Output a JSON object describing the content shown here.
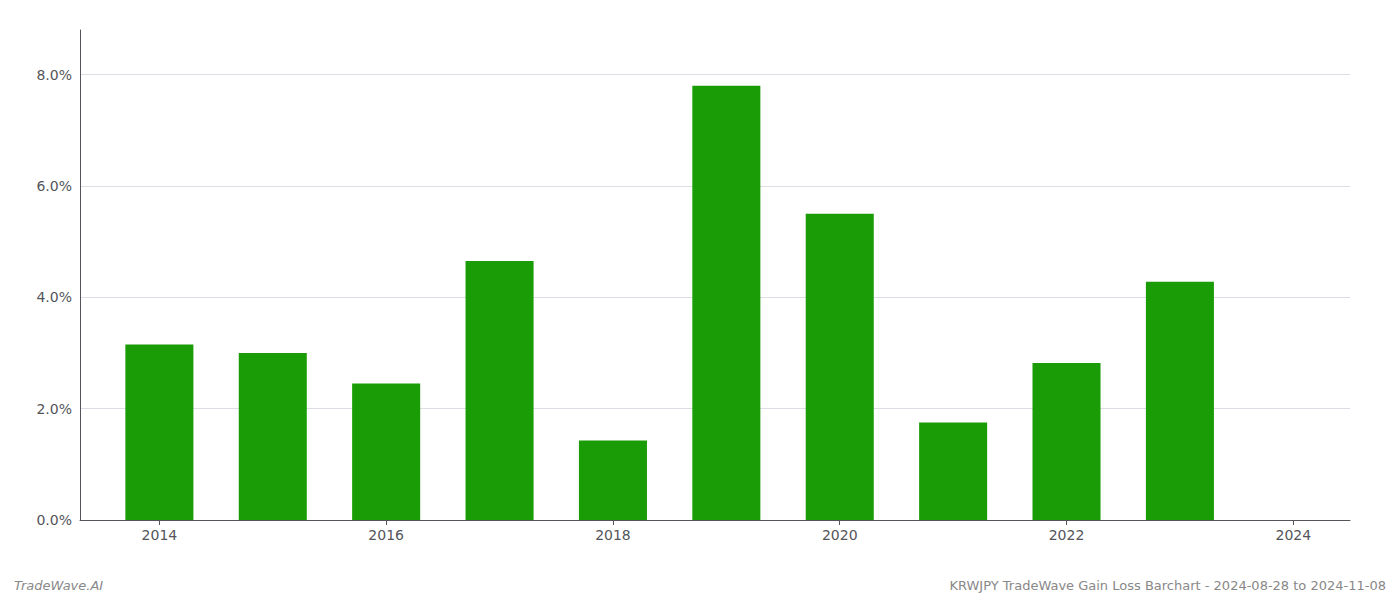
{
  "chart_data": {
    "type": "bar",
    "annotations": [
      "TradeWave.AI",
      "KRWJPY TradeWave Gain Loss Barchart - 2024-08-28 to 2024-11-08"
    ],
    "x": [
      2014,
      2015,
      2016,
      2017,
      2018,
      2019,
      2020,
      2021,
      2022,
      2023
    ],
    "values": [
      0.0315,
      0.03,
      0.0245,
      0.0465,
      0.0143,
      0.078,
      0.055,
      0.0175,
      0.0282,
      0.0428
    ],
    "color": "#1a9c06",
    "xlim": [
      2013.3,
      2024.5
    ],
    "xticks": [
      2014,
      2016,
      2018,
      2020,
      2022,
      2024
    ],
    "ylim": [
      0,
      0.088
    ],
    "yticks": [
      {
        "value": 0,
        "label": "0.0%"
      },
      {
        "value": 0.02,
        "label": "2.0%"
      },
      {
        "value": 0.04,
        "label": "4.0%"
      },
      {
        "value": 0.06,
        "label": "6.0%"
      },
      {
        "value": 0.08,
        "label": "8.0%"
      }
    ],
    "grid": true
  }
}
